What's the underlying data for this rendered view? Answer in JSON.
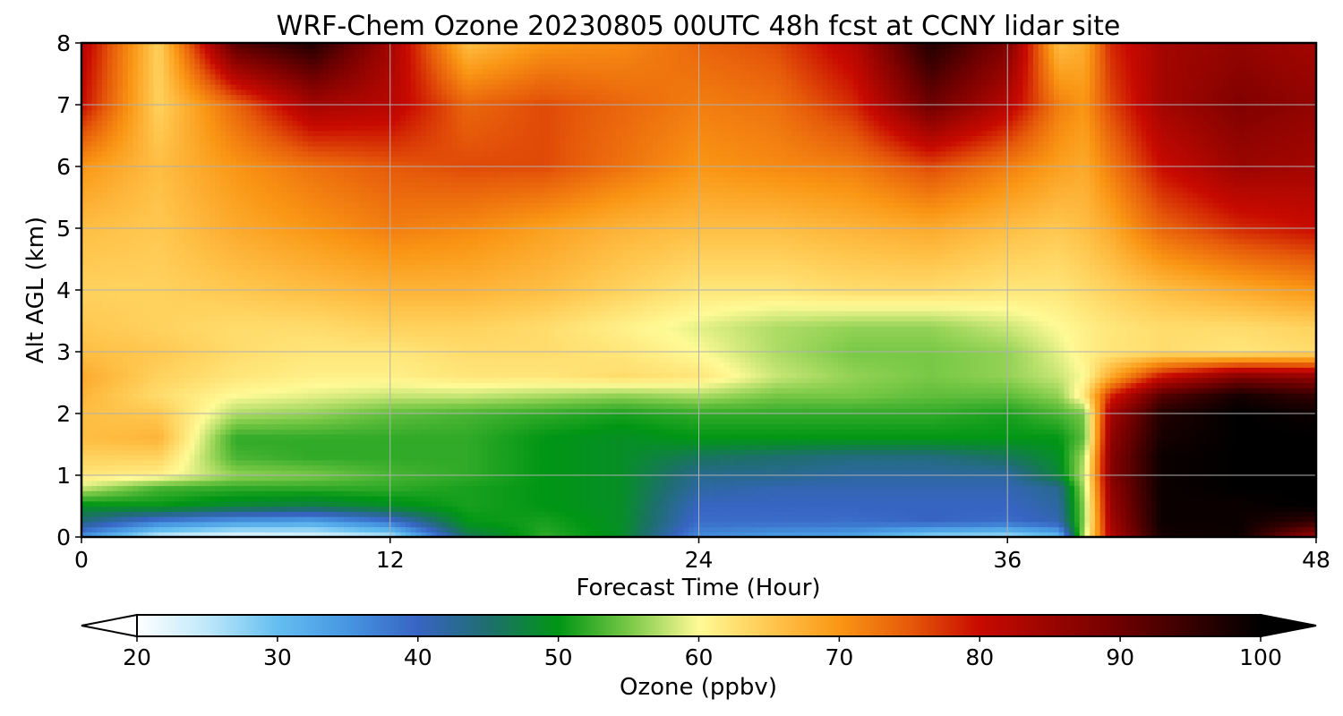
{
  "chart_data": {
    "type": "heatmap",
    "title": "WRF-Chem Ozone  20230805 00UTC 48h fcst at CCNY lidar site",
    "xlabel": "Forecast Time (Hour)",
    "ylabel": "Alt AGL (km)",
    "xlim": [
      0,
      48
    ],
    "ylim": [
      0,
      8
    ],
    "x_ticks": [
      "0",
      "12",
      "24",
      "36",
      "48"
    ],
    "y_ticks": [
      "0",
      "1",
      "2",
      "3",
      "4",
      "5",
      "6",
      "7",
      "8"
    ],
    "grid": true,
    "colorbar": {
      "label": "Ozone  (ppbv)",
      "min": 20,
      "max": 100,
      "ticks": [
        "20",
        "30",
        "40",
        "50",
        "60",
        "70",
        "80",
        "90",
        "100"
      ],
      "extend": "both"
    },
    "x": [
      0,
      3,
      6,
      9,
      12,
      15,
      18,
      21,
      24,
      27,
      30,
      33,
      36,
      38,
      39,
      40,
      42,
      45,
      48
    ],
    "y": [
      0,
      0.25,
      0.5,
      0.8,
      1.0,
      1.3,
      1.6,
      2.0,
      2.3,
      2.6,
      3.0,
      3.4,
      4.0,
      5.0,
      6.0,
      7.0,
      8.0
    ],
    "z": [
      [
        35,
        24,
        21,
        22,
        25,
        46,
        52,
        49,
        36,
        34,
        33,
        27,
        26,
        30,
        58,
        82,
        98,
        99,
        84
      ],
      [
        44,
        37,
        34,
        33,
        38,
        50,
        51,
        49,
        39,
        39,
        39,
        40,
        39,
        41,
        56,
        84,
        99,
        99,
        95
      ],
      [
        49,
        50,
        48,
        47,
        49,
        51,
        50,
        49,
        40,
        40,
        40,
        40,
        40,
        42,
        56,
        85,
        99,
        99,
        100
      ],
      [
        58,
        53,
        52,
        52,
        52,
        51,
        50,
        49,
        42,
        41,
        41,
        41,
        41,
        43,
        57,
        86,
        99,
        100,
        100
      ],
      [
        62,
        61,
        56,
        55,
        53,
        52,
        50,
        49,
        43,
        43,
        42,
        42,
        42,
        48,
        58,
        87,
        99,
        100,
        100
      ],
      [
        64,
        64,
        53,
        52,
        52,
        52,
        50,
        49,
        46,
        45,
        44,
        44,
        46,
        49,
        57,
        87,
        99,
        100,
        100
      ],
      [
        66,
        67,
        52,
        52,
        52,
        52,
        50,
        49,
        50,
        50,
        50,
        50,
        50,
        50,
        54,
        86,
        98,
        100,
        100
      ],
      [
        66,
        65,
        57,
        56,
        54,
        53,
        52,
        51,
        52,
        52,
        52,
        52,
        51,
        53,
        55,
        84,
        97,
        100,
        99
      ],
      [
        67,
        63,
        60,
        59,
        58,
        58,
        57,
        56,
        57,
        55,
        55,
        54,
        54,
        56,
        62,
        78,
        92,
        98,
        95
      ],
      [
        68,
        64,
        62,
        61,
        61,
        62,
        62,
        63,
        62,
        58,
        56,
        55,
        56,
        58,
        60,
        68,
        80,
        88,
        86
      ],
      [
        66,
        65,
        63,
        62,
        62,
        63,
        63,
        62,
        60,
        57,
        55,
        55,
        56,
        59,
        61,
        62,
        63,
        62,
        63
      ],
      [
        65,
        64,
        63,
        63,
        64,
        64,
        63,
        61,
        59,
        57,
        56,
        56,
        58,
        60,
        61,
        62,
        63,
        63,
        64
      ],
      [
        64,
        64,
        65,
        66,
        67,
        67,
        66,
        64,
        62,
        62,
        63,
        63,
        62,
        62,
        63,
        64,
        66,
        68,
        70
      ],
      [
        66,
        65,
        68,
        70,
        72,
        71,
        69,
        67,
        66,
        66,
        67,
        68,
        66,
        65,
        66,
        68,
        74,
        78,
        80
      ],
      [
        70,
        66,
        70,
        73,
        75,
        76,
        76,
        73,
        70,
        71,
        72,
        76,
        72,
        69,
        68,
        72,
        80,
        85,
        84
      ],
      [
        80,
        64,
        74,
        84,
        82,
        74,
        76,
        74,
        72,
        73,
        78,
        90,
        82,
        72,
        70,
        76,
        84,
        88,
        86
      ],
      [
        82,
        64,
        92,
        97,
        84,
        66,
        70,
        71,
        74,
        76,
        82,
        97,
        88,
        66,
        68,
        78,
        84,
        86,
        84
      ]
    ]
  }
}
